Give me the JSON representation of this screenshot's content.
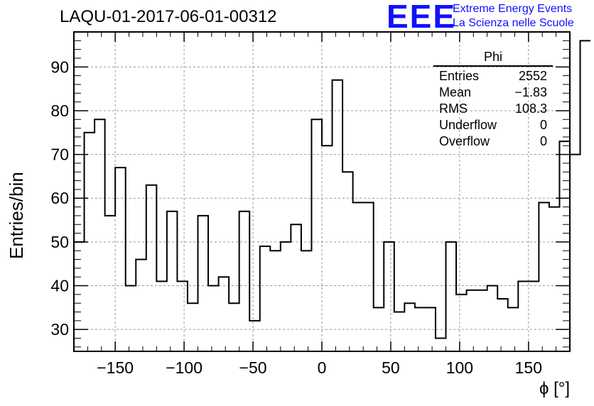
{
  "title": "LAQU-01-2017-06-01-00312",
  "logo": {
    "mark": "EEE",
    "line1": "Extreme Energy Events",
    "line2": "La Scienza nelle Scuole",
    "color": "#1010ff"
  },
  "stats": {
    "name": "Phi",
    "rows": [
      {
        "label": "Entries",
        "value": "2552"
      },
      {
        "label": "Mean",
        "value": "−1.83"
      },
      {
        "label": "RMS",
        "value": "108.3"
      },
      {
        "label": "Underflow",
        "value": "0"
      },
      {
        "label": "Overflow",
        "value": "0"
      }
    ]
  },
  "chart_data": {
    "type": "bar",
    "title": "LAQU-01-2017-06-01-00312",
    "xlabel": "ϕ [°]",
    "ylabel": "Entries/bin",
    "xlim": [
      -180,
      180
    ],
    "ylim": [
      25,
      98
    ],
    "bin_width": 7.5,
    "grid": true,
    "xticks": [
      -150,
      -100,
      -50,
      0,
      50,
      100,
      150
    ],
    "yticks": [
      30,
      40,
      50,
      60,
      70,
      80,
      90
    ],
    "values": [
      50,
      75,
      78,
      56,
      67,
      40,
      46,
      63,
      41,
      57,
      41,
      36,
      56,
      40,
      42,
      36,
      57,
      32,
      49,
      48,
      50,
      54,
      48,
      78,
      72,
      87,
      66,
      59,
      59,
      35,
      50,
      34,
      36,
      35,
      35,
      28,
      50,
      38,
      39,
      39,
      40,
      37,
      35,
      41,
      41,
      59,
      58,
      73,
      70,
      96
    ]
  }
}
